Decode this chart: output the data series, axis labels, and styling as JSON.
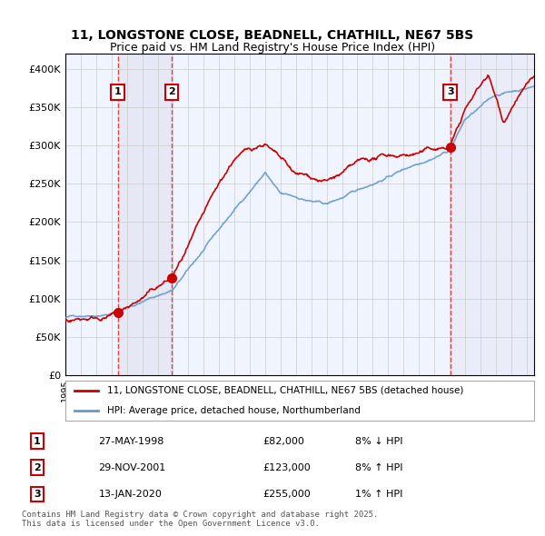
{
  "title_line1": "11, LONGSTONE CLOSE, BEADNELL, CHATHILL, NE67 5BS",
  "title_line2": "Price paid vs. HM Land Registry's House Price Index (HPI)",
  "legend_label1": "11, LONGSTONE CLOSE, BEADNELL, CHATHILL, NE67 5BS (detached house)",
  "legend_label2": "HPI: Average price, detached house, Northumberland",
  "footer": "Contains HM Land Registry data © Crown copyright and database right 2025.\nThis data is licensed under the Open Government Licence v3.0.",
  "transactions": [
    {
      "num": 1,
      "date_str": "27-MAY-1998",
      "price": 82000,
      "pct": "8% ↓ HPI",
      "year": 1998.41
    },
    {
      "num": 2,
      "date_str": "29-NOV-2001",
      "price": 123000,
      "pct": "8% ↑ HPI",
      "year": 2001.91
    },
    {
      "num": 3,
      "date_str": "13-JAN-2020",
      "price": 255000,
      "pct": "1% ↑ HPI",
      "year": 2020.04
    }
  ],
  "ylim": [
    0,
    420000
  ],
  "xlim_start": 1995.0,
  "xlim_end": 2025.5,
  "red_color": "#cc0000",
  "blue_color": "#6699cc",
  "bg_color": "#f0f4ff",
  "grid_color": "#cccccc",
  "vline_color": "#dd4444",
  "box_color": "#cc0000"
}
